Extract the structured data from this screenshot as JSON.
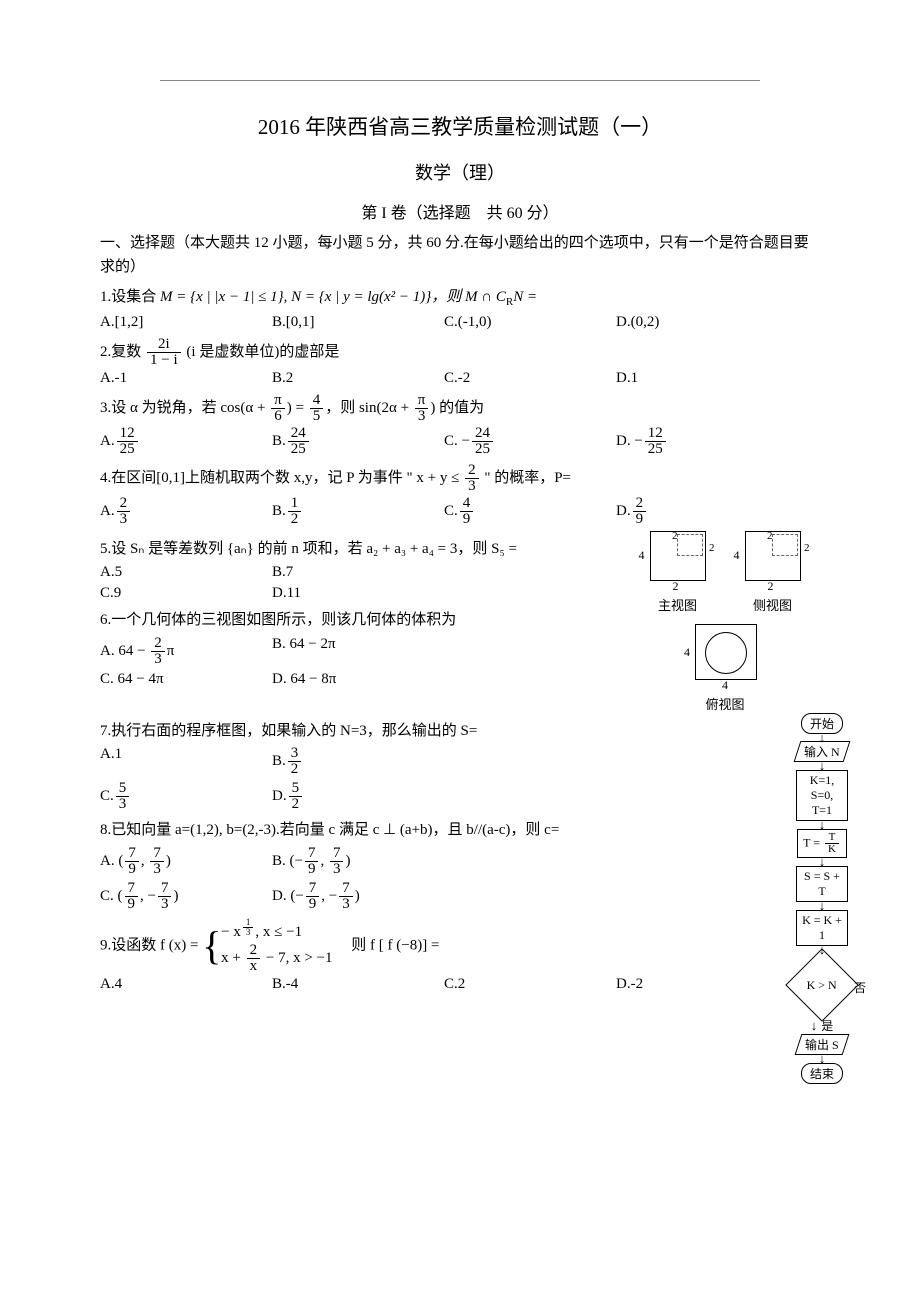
{
  "rule_present": true,
  "title": "2016 年陕西省高三教学质量检测试题（一）",
  "subtitle": "数学（理）",
  "section": "第 I 卷（选择题　共 60 分）",
  "intro": "一、选择题（本大题共 12 小题，每小题 5 分，共 60 分.在每小题给出的四个选项中，只有一个是符合题目要求的）",
  "q1": {
    "stem_pre": "1.设集合 ",
    "stem_math": "M = {x | |x − 1| ≤ 1}, N = {x | y = lg(x² − 1)}，则 M ∩ C",
    "stem_sub": "R",
    "stem_post": "N =",
    "A": "A.[1,2]",
    "B": "B.[0,1]",
    "C": "C.(-1,0)",
    "D": "D.(0,2)"
  },
  "q2": {
    "stem_pre": "2.复数 ",
    "num": "2i",
    "den": "1 − i",
    "stem_post": "(i 是虚数单位)的虚部是",
    "A": "A.-1",
    "B": "B.2",
    "C": "C.-2",
    "D": "D.1"
  },
  "q3": {
    "stem_pre": "3.设 α 为锐角，若 cos(α + ",
    "n1": "π",
    "d1": "6",
    "mid1": ") = ",
    "n2": "4",
    "d2": "5",
    "mid2": "，则 sin(2α + ",
    "n3": "π",
    "d3": "3",
    "stem_post": ") 的值为",
    "A_pre": "A.",
    "A_n": "12",
    "A_d": "25",
    "B_pre": "B.",
    "B_n": "24",
    "B_d": "25",
    "C_pre": "C. −",
    "C_n": "24",
    "C_d": "25",
    "D_pre": "D. −",
    "D_n": "12",
    "D_d": "25"
  },
  "q4": {
    "stem_pre": "4.在区间[0,1]上随机取两个数 x,y，记 P 为事件 \" x + y ≤ ",
    "n": "2",
    "d": "3",
    "stem_post": " \" 的概率，P=",
    "A_pre": "A.",
    "A_n": "2",
    "A_d": "3",
    "B_pre": "B.",
    "B_n": "1",
    "B_d": "2",
    "C_pre": "C.",
    "C_n": "4",
    "C_d": "9",
    "D_pre": "D.",
    "D_n": "2",
    "D_d": "9"
  },
  "q5": {
    "stem": "5.设 Sₙ 是等差数列 {aₙ} 的前 n 项和，若 a₂ + a₃ + a₄ = 3，则 S₅ =",
    "A": "A.5",
    "B": "B.7",
    "C": "C.9",
    "D": "D.11"
  },
  "q6": {
    "stem": "6.一个几何体的三视图如图所示，则该几何体的体积为",
    "A_pre": "A. 64 − ",
    "A_n": "2",
    "A_d": "3",
    "A_post": "π",
    "B": "B. 64 − 2π",
    "C": "C. 64 − 4π",
    "D": "D. 64 − 8π"
  },
  "views": {
    "front": "主视图",
    "side": "侧视图",
    "top": "俯视图",
    "lbl4": "4",
    "lbl2": "2"
  },
  "q7": {
    "stem": "7.执行右面的程序框图，如果输入的 N=3，那么输出的 S=",
    "A": "A.1",
    "B_pre": "B.",
    "B_n": "3",
    "B_d": "2",
    "C_pre": "C.",
    "C_n": "5",
    "C_d": "3",
    "D_pre": "D.",
    "D_n": "5",
    "D_d": "2"
  },
  "q8": {
    "stem": "8.已知向量 a=(1,2), b=(2,-3).若向量 c 满足 c ⊥ (a+b)，且 b//(a-c)，则 c=",
    "A_pre": "A. (",
    "A_n1": "7",
    "A_d1": "9",
    "A_m": ", ",
    "A_n2": "7",
    "A_d2": "3",
    "A_post": ")",
    "B_pre": "B. (−",
    "B_n1": "7",
    "B_d1": "9",
    "B_m": ", ",
    "B_n2": "7",
    "B_d2": "3",
    "B_post": ")",
    "C_pre": "C. (",
    "C_n1": "7",
    "C_d1": "9",
    "C_m": ", −",
    "C_n2": "7",
    "C_d2": "3",
    "C_post": ")",
    "D_pre": "D. (−",
    "D_n1": "7",
    "D_d1": "9",
    "D_m": ", −",
    "D_n2": "7",
    "D_d2": "3",
    "D_post": ")"
  },
  "q9": {
    "stem_pre": "9.设函数 f (x) = ",
    "row1_pre": "− x",
    "row1_exp_n": "1",
    "row1_exp_d": "3",
    "row1_post": ", x ≤ −1",
    "row2_pre": "x + ",
    "row2_n": "2",
    "row2_d": "x",
    "row2_post": " − 7, x > −1",
    "stem_post": "　则 f [ f (−8)] =",
    "A": "A.4",
    "B": "B.-4",
    "C": "C.2",
    "D": "D.-2"
  },
  "flowchart": {
    "start": "开始",
    "input": "输入 N",
    "init": "K=1, S=0, T=1",
    "step1_pre": "T = ",
    "step1_n": "T",
    "step1_d": "K",
    "step2": "S = S + T",
    "step3": "K = K + 1",
    "cond": "K > N",
    "no": "否",
    "yes": "是",
    "output": "输出 S",
    "end": "结束"
  }
}
